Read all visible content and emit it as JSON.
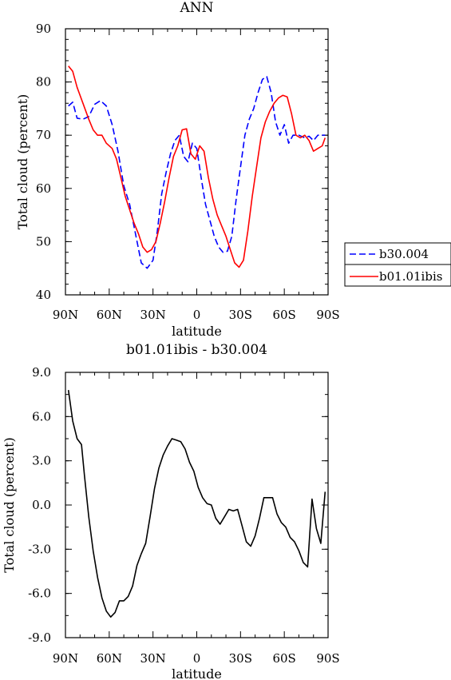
{
  "colors": {
    "blue": "#0000ff",
    "red": "#ff0000",
    "black": "#000000"
  },
  "chart_data": [
    {
      "type": "line",
      "title": "ANN",
      "xlabel": "latitude",
      "ylabel": "Total cloud (percent)",
      "xlim": [
        90,
        -90
      ],
      "ylim": [
        40,
        90
      ],
      "x_tick_labels": [
        "90N",
        "60N",
        "30N",
        "0",
        "30S",
        "60S",
        "90S"
      ],
      "y_tick_labels": [
        "40",
        "50",
        "60",
        "70",
        "80",
        "90"
      ],
      "legend_position": "right",
      "series": [
        {
          "name": "b30.004",
          "style": "dashed",
          "color": "#0000ff",
          "x": [
            88,
            85,
            82,
            78,
            74,
            70,
            66,
            62,
            58,
            54,
            50,
            46,
            42,
            38,
            34,
            30,
            27,
            24,
            21,
            18,
            15,
            12,
            9,
            6,
            3,
            0,
            -3,
            -6,
            -9,
            -12,
            -15,
            -18,
            -21,
            -24,
            -27,
            -30,
            -33,
            -36,
            -39,
            -42,
            -45,
            -48,
            -51,
            -54,
            -57,
            -60,
            -63,
            -66,
            -70,
            -74,
            -77,
            -80,
            -83,
            -86,
            -88
          ],
          "y": [
            75.5,
            76.2,
            73.2,
            73.0,
            73.5,
            75.8,
            76.5,
            75.5,
            72.0,
            67.0,
            60.5,
            57.0,
            51.5,
            46.0,
            45.0,
            46.5,
            52.0,
            59.0,
            63.0,
            66.5,
            69.0,
            70.0,
            66.0,
            65.0,
            68.5,
            67.5,
            62.0,
            57.0,
            54.0,
            51.0,
            49.0,
            48.0,
            48.2,
            51.0,
            58.0,
            64.0,
            70.0,
            73.0,
            75.0,
            78.0,
            80.5,
            81.0,
            78.0,
            72.5,
            70.0,
            72.0,
            68.5,
            70.0,
            70.0,
            69.5,
            69.8,
            69.0,
            70.0,
            70.0,
            70.0
          ]
        },
        {
          "name": "b01.01ibis",
          "style": "solid",
          "color": "#ff0000",
          "x": [
            88,
            85,
            82,
            78,
            74,
            71,
            68,
            65,
            62,
            58,
            55,
            52,
            49,
            46,
            43,
            40,
            37,
            34,
            31,
            28,
            25,
            22,
            19,
            16,
            13,
            10,
            7,
            4,
            1,
            -2,
            -5,
            -8,
            -11,
            -14,
            -17,
            -20,
            -23,
            -26,
            -29,
            -32,
            -35,
            -38,
            -41,
            -44,
            -47,
            -50,
            -53,
            -56,
            -59,
            -62,
            -65,
            -68,
            -71,
            -74,
            -77,
            -80,
            -83,
            -86,
            -88
          ],
          "y": [
            83.0,
            82.0,
            79.0,
            76.0,
            73.0,
            71.0,
            70.0,
            70.0,
            68.5,
            67.5,
            65.5,
            62.0,
            58.5,
            56.0,
            53.5,
            51.5,
            49.0,
            48.0,
            48.5,
            50.0,
            53.5,
            57.5,
            62.0,
            66.0,
            68.0,
            71.0,
            71.2,
            66.5,
            65.5,
            68.0,
            67.0,
            62.0,
            58.0,
            55.0,
            53.0,
            51.0,
            48.5,
            46.0,
            45.2,
            46.5,
            52.0,
            58.5,
            64.0,
            69.5,
            72.5,
            74.5,
            76.0,
            77.0,
            77.5,
            77.2,
            74.0,
            70.0,
            69.5,
            70.0,
            69.0,
            67.0,
            67.5,
            68.0,
            69.5
          ]
        }
      ]
    },
    {
      "type": "line",
      "title": "b01.01ibis - b30.004",
      "xlabel": "latitude",
      "ylabel": "Total cloud (percent)",
      "xlim": [
        90,
        -90
      ],
      "ylim": [
        -9.0,
        9.0
      ],
      "x_tick_labels": [
        "90N",
        "60N",
        "30N",
        "0",
        "30S",
        "60S",
        "90S"
      ],
      "y_tick_labels": [
        "-9.0",
        "-6.0",
        "-3.0",
        "0.0",
        "3.0",
        "6.0",
        "9.0"
      ],
      "series": [
        {
          "color": "#000000",
          "x": [
            88,
            85,
            82,
            79,
            77,
            74,
            71,
            68,
            65,
            62,
            59,
            56,
            53,
            50,
            47,
            44,
            41,
            38,
            35,
            32,
            29,
            26,
            23,
            20,
            17,
            14,
            11,
            8,
            5,
            2,
            -1,
            -4,
            -7,
            -10,
            -13,
            -16,
            -19,
            -22,
            -25,
            -28,
            -31,
            -34,
            -37,
            -40,
            -43,
            -46,
            -49,
            -52,
            -55,
            -58,
            -61,
            -64,
            -67,
            -70,
            -73,
            -76,
            -79,
            -82,
            -85,
            -88
          ],
          "y": [
            7.8,
            5.7,
            4.5,
            4.1,
            2.0,
            -0.8,
            -3.1,
            -4.9,
            -6.3,
            -7.2,
            -7.6,
            -7.3,
            -6.5,
            -6.5,
            -6.2,
            -5.5,
            -4.1,
            -3.3,
            -2.6,
            -0.8,
            1.1,
            2.5,
            3.4,
            4.0,
            4.5,
            4.4,
            4.3,
            3.8,
            2.9,
            2.3,
            1.2,
            0.5,
            0.1,
            0.0,
            -0.9,
            -1.3,
            -0.8,
            -0.3,
            -0.4,
            -0.3,
            -1.4,
            -2.5,
            -2.8,
            -2.1,
            -0.9,
            0.5,
            0.5,
            0.5,
            -0.6,
            -1.2,
            -1.5,
            -2.2,
            -2.5,
            -3.1,
            -3.9,
            -4.2,
            0.4,
            -1.6,
            -2.6,
            0.9
          ]
        }
      ]
    }
  ]
}
